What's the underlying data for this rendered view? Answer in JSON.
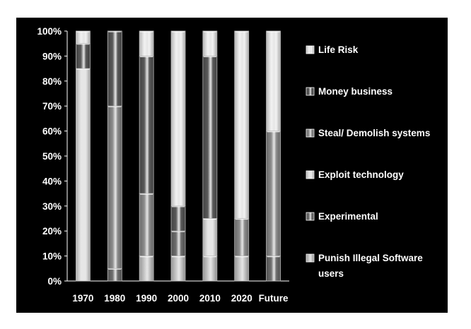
{
  "chart_data": {
    "type": "bar",
    "stacked": true,
    "categories": [
      "1970",
      "1980",
      "1990",
      "2000",
      "2010",
      "2020",
      "Future"
    ],
    "y_ticks": [
      "0%",
      "10%",
      "20%",
      "30%",
      "40%",
      "50%",
      "60%",
      "70%",
      "80%",
      "90%",
      "100%"
    ],
    "ylim": [
      0,
      100
    ],
    "series": [
      {
        "name": "Punish Illegal Software users",
        "values": [
          0,
          0,
          10,
          10,
          10,
          10,
          0
        ],
        "color": "#c8c8c8"
      },
      {
        "name": "Experimental",
        "values": [
          0,
          5,
          0,
          10,
          0,
          0,
          10
        ],
        "color": "#6e6e6e"
      },
      {
        "name": "Exploit technology",
        "values": [
          85,
          0,
          0,
          0,
          15,
          0,
          0
        ],
        "color": "#e6e6e6"
      },
      {
        "name": "Steal/ Demolish systems",
        "values": [
          0,
          65,
          25,
          0,
          0,
          15,
          50
        ],
        "color": "#8c8c8c"
      },
      {
        "name": "Money business",
        "values": [
          10,
          30,
          55,
          10,
          65,
          0,
          0
        ],
        "color": "#5a5a5a"
      },
      {
        "name": "Life Risk",
        "values": [
          5,
          0,
          10,
          70,
          10,
          75,
          40
        ],
        "color": "#f2f2f2"
      }
    ],
    "legend_position": "right",
    "legend_order": [
      "Life Risk",
      "Money business",
      "Steal/ Demolish systems",
      "Exploit technology",
      "Experimental",
      "Punish Illegal Software users"
    ]
  }
}
